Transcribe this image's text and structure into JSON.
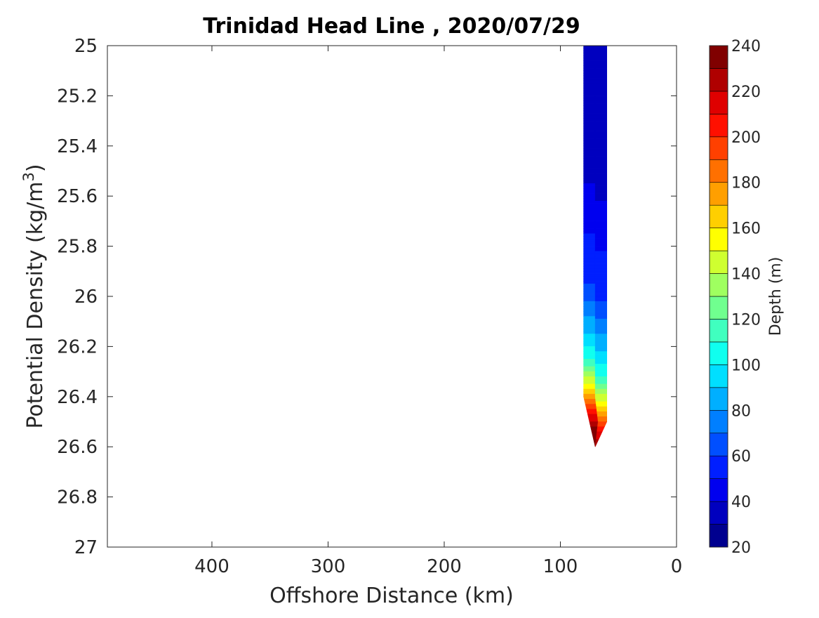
{
  "chart_data": {
    "type": "contour",
    "title": "Trinidad Head Line , 2020/07/29",
    "xlabel": "Offshore Distance (km)",
    "ylabel": "Potential Density (kg/m",
    "ylabel_sup": "3",
    "ylabel_close": ")",
    "colorbar_label": "Depth (m)",
    "xlim": [
      490,
      0
    ],
    "x_reversed": true,
    "ylim": [
      25,
      27
    ],
    "y_reversed": true,
    "x_ticks": [
      400,
      300,
      200,
      100,
      0
    ],
    "x_tick_labels": [
      "400",
      "300",
      "200",
      "100",
      "0"
    ],
    "y_ticks": [
      25,
      25.2,
      25.4,
      25.6,
      25.8,
      26,
      26.2,
      26.4,
      26.6,
      26.8,
      27
    ],
    "y_tick_labels": [
      "25",
      "25.2",
      "25.4",
      "25.6",
      "25.8",
      "26",
      "26.2",
      "26.4",
      "26.6",
      "26.8",
      "27"
    ],
    "colorbar": {
      "min": 20,
      "max": 240,
      "step": 10,
      "tick_values": [
        20,
        40,
        60,
        80,
        100,
        120,
        140,
        160,
        180,
        200,
        220,
        240
      ],
      "tick_labels": [
        "20",
        "40",
        "60",
        "80",
        "100",
        "120",
        "140",
        "160",
        "180",
        "200",
        "220",
        "240"
      ],
      "colormap": "jet",
      "colors": [
        "#00008f",
        "#0000bf",
        "#0000ef",
        "#001fff",
        "#004fff",
        "#007fff",
        "#00afff",
        "#00dfff",
        "#10ffef",
        "#40ffbf",
        "#70ff8f",
        "#9fff60",
        "#cfff30",
        "#ffff00",
        "#ffcf00",
        "#ff9f00",
        "#ff7000",
        "#ff4000",
        "#ff1000",
        "#df0000",
        "#af0000",
        "#800000"
      ]
    },
    "data_region": {
      "x_range_km": [
        60,
        80
      ],
      "density_range": [
        25,
        26.6
      ]
    },
    "depth_profile": [
      {
        "density": 25.0,
        "depth": 30
      },
      {
        "density": 25.6,
        "depth": 40
      },
      {
        "density": 26.0,
        "depth": 60
      },
      {
        "density": 26.2,
        "depth": 90
      },
      {
        "density": 26.3,
        "depth": 110
      },
      {
        "density": 26.4,
        "depth": 150
      },
      {
        "density": 26.5,
        "depth": 200
      },
      {
        "density": 26.6,
        "depth": 240
      }
    ]
  }
}
